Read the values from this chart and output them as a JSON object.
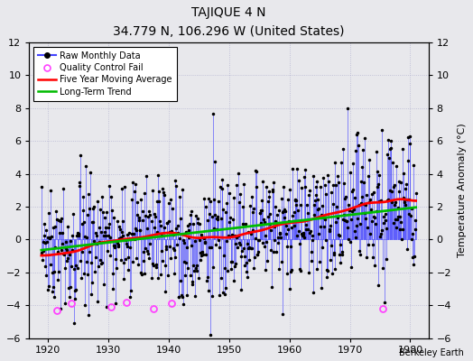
{
  "title": "TAJIQUE 4 N",
  "subtitle": "34.779 N, 106.296 W (United States)",
  "attribution": "Berkeley Earth",
  "ylabel": "Temperature Anomaly (°C)",
  "xlim": [
    1917,
    1983
  ],
  "ylim": [
    -6,
    12
  ],
  "yticks_left": [
    -6,
    -4,
    -2,
    0,
    2,
    4,
    6,
    8,
    10,
    12
  ],
  "yticks_right": [
    -6,
    -4,
    -2,
    0,
    2,
    4,
    6,
    8,
    10,
    12
  ],
  "xticks": [
    1920,
    1930,
    1940,
    1950,
    1960,
    1970,
    1980
  ],
  "raw_color": "#4444FF",
  "ma_color": "#FF0000",
  "trend_color": "#00BB00",
  "qc_color": "#FF44FF",
  "bg_color": "#E8E8EC",
  "trend_slope": 0.042,
  "trend_intercept": -0.6,
  "seed": 17
}
